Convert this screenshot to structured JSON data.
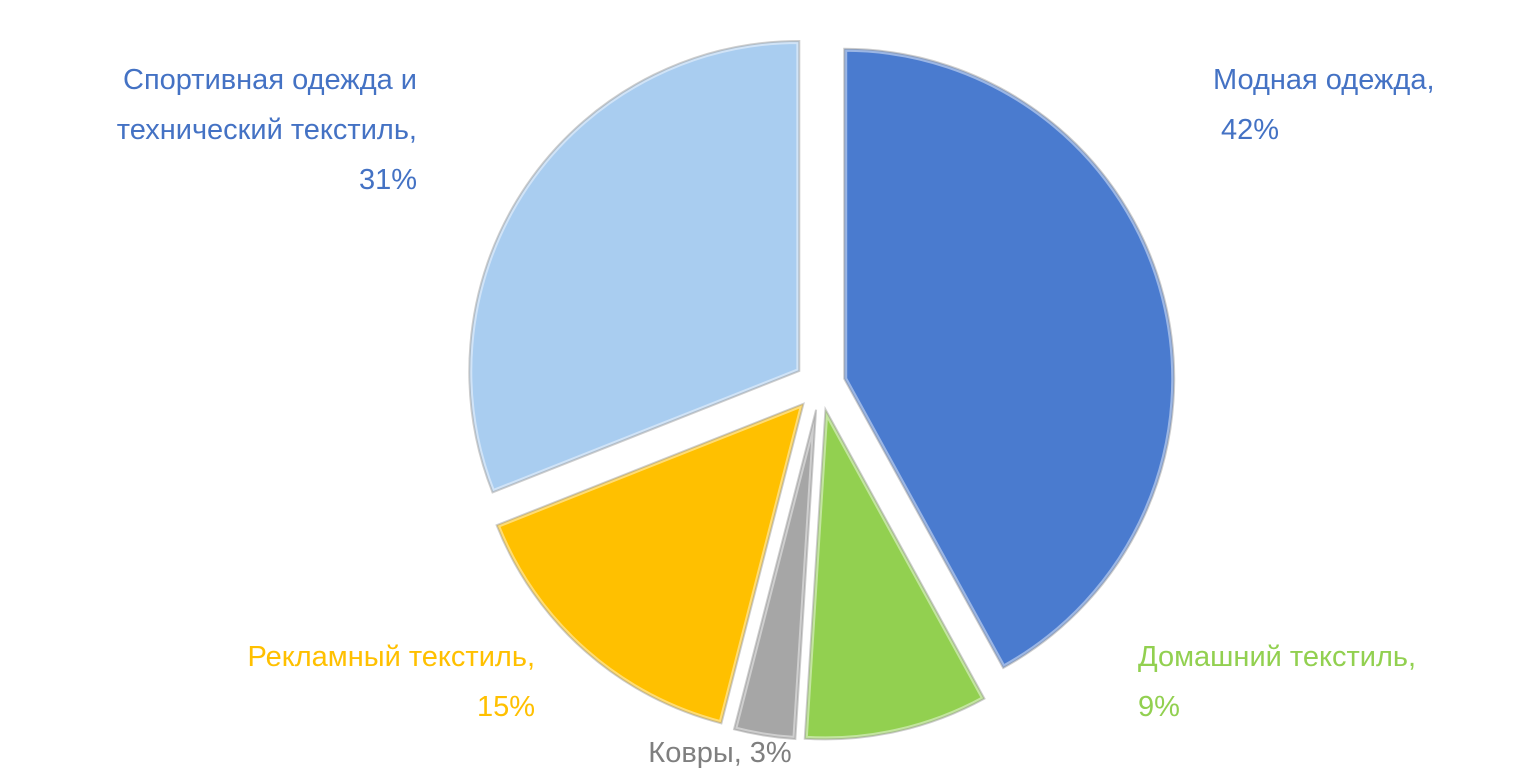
{
  "chart_data": {
    "type": "pie",
    "categories": [
      "Модная одежда,",
      "Домашний текстиль,",
      "Ковры,",
      "Рекламный текстиль,",
      "Спортивная одежда и технический текстиль,"
    ],
    "values": [
      42,
      9,
      3,
      15,
      31
    ],
    "value_labels": [
      "42%",
      "9%",
      "3%",
      "15%",
      "31%"
    ],
    "colors": [
      "#4a7bcf",
      "#92d050",
      "#a6a6a6",
      "#ffc000",
      "#a9cdf0"
    ],
    "label_colors": [
      "#4472c4",
      "#92d050",
      "#7f7f7f",
      "#ffc000",
      "#4472c4"
    ]
  }
}
